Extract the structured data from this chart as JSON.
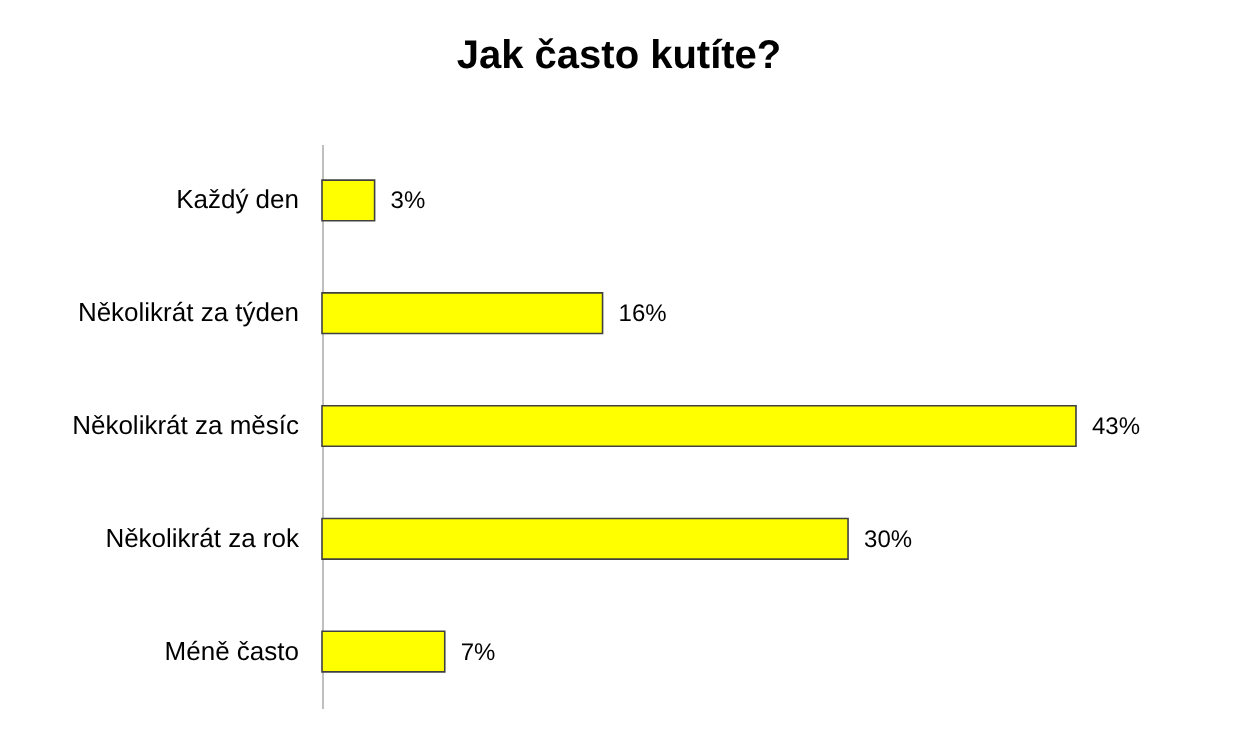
{
  "chart_data": {
    "type": "bar",
    "orientation": "horizontal",
    "title": "Jak často kutíte?",
    "categories": [
      "Každý den",
      "Několikrát za týden",
      "Několikrát za měsíc",
      "Několikrát za rok",
      "Méně často"
    ],
    "values": [
      3,
      16,
      43,
      30,
      7
    ],
    "value_labels": [
      "3%",
      "16%",
      "43%",
      "30%",
      "7%"
    ],
    "color": "#ffff00"
  }
}
